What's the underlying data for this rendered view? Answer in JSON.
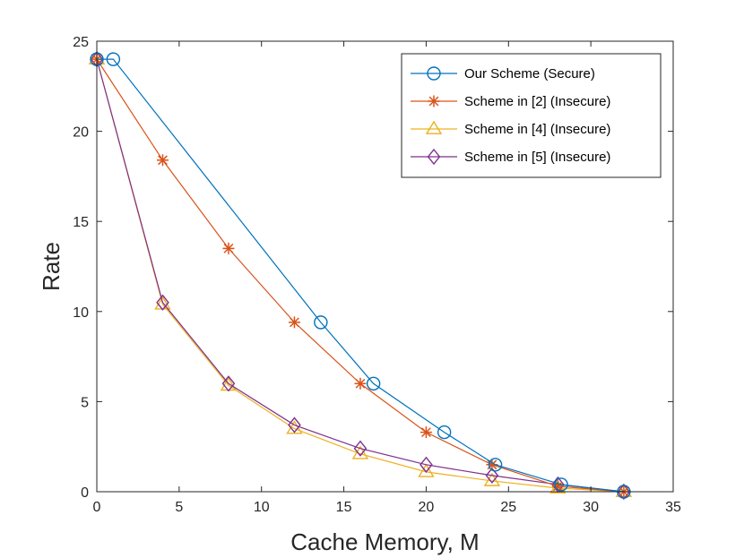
{
  "chart_data": {
    "type": "line",
    "title": "",
    "xlabel": "Cache Memory, M",
    "ylabel": "Rate",
    "xlim": [
      0,
      35
    ],
    "ylim": [
      0,
      25
    ],
    "xticks": [
      0,
      5,
      10,
      15,
      20,
      25,
      30,
      35
    ],
    "yticks": [
      0,
      5,
      10,
      15,
      20,
      25
    ],
    "grid": false,
    "legend_position": "top-right",
    "series": [
      {
        "name": "Our Scheme (Secure)",
        "color": "#0072BD",
        "marker": "circle",
        "x": [
          0,
          1,
          13.6,
          16.8,
          21.1,
          24.2,
          28.2,
          32
        ],
        "y": [
          24,
          24,
          9.4,
          6.0,
          3.3,
          1.5,
          0.4,
          0
        ]
      },
      {
        "name": "Scheme in [2] (Insecure)",
        "color": "#D95319",
        "marker": "asterisk",
        "x": [
          0,
          4,
          8,
          12,
          16,
          20,
          24,
          28,
          32
        ],
        "y": [
          24,
          18.4,
          13.5,
          9.4,
          6.0,
          3.3,
          1.5,
          0.3,
          0
        ]
      },
      {
        "name": "Scheme in [4] (Insecure)",
        "color": "#EDB120",
        "marker": "triangle",
        "x": [
          0,
          4,
          8,
          12,
          16,
          20,
          24,
          28,
          32
        ],
        "y": [
          24,
          10.4,
          5.9,
          3.5,
          2.1,
          1.1,
          0.6,
          0.2,
          0
        ]
      },
      {
        "name": "Scheme in [5] (Insecure)",
        "color": "#7E2F8E",
        "marker": "diamond",
        "x": [
          0,
          4,
          8,
          12,
          16,
          20,
          24,
          28,
          32
        ],
        "y": [
          24,
          10.5,
          6.0,
          3.7,
          2.4,
          1.5,
          0.9,
          0.4,
          0
        ]
      }
    ]
  }
}
